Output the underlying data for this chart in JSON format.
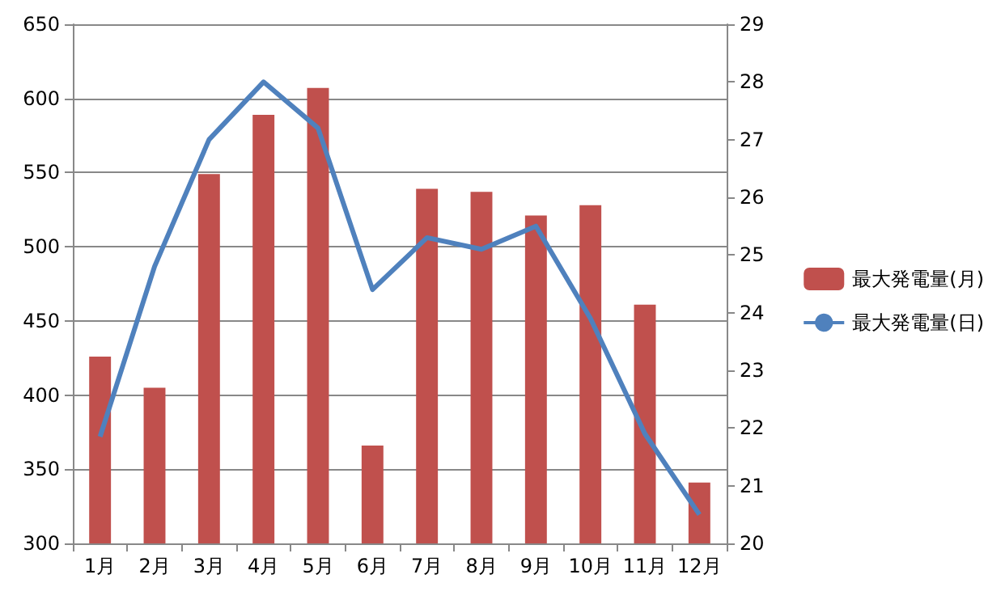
{
  "chart_data": {
    "type": "bar",
    "categories": [
      "1月",
      "2月",
      "3月",
      "4月",
      "5月",
      "6月",
      "7月",
      "8月",
      "9月",
      "10月",
      "11月",
      "12月"
    ],
    "series": [
      {
        "name": "最大発電量(月)",
        "color": "#c0504d",
        "values": [
          426,
          405,
          549,
          589,
          607,
          366,
          539,
          537,
          521,
          528,
          461,
          341
        ]
      },
      {
        "name": "最大発電量(日)",
        "type": "line",
        "axis": "y2",
        "color": "#4f81bd",
        "values": [
          21.85,
          24.8,
          27.0,
          28.0,
          27.2,
          24.4,
          25.3,
          25.1,
          25.5,
          23.9,
          21.9,
          20.5
        ]
      }
    ],
    "ylim": [
      300,
      650
    ],
    "yticks": [
      300,
      350,
      400,
      450,
      500,
      550,
      600,
      650
    ],
    "y2lim": [
      20,
      29
    ],
    "y2ticks": [
      20,
      21,
      22,
      23,
      24,
      25,
      26,
      27,
      28,
      29
    ],
    "grid": "y",
    "legend": "right",
    "marker": "none",
    "line_style": "solid"
  }
}
